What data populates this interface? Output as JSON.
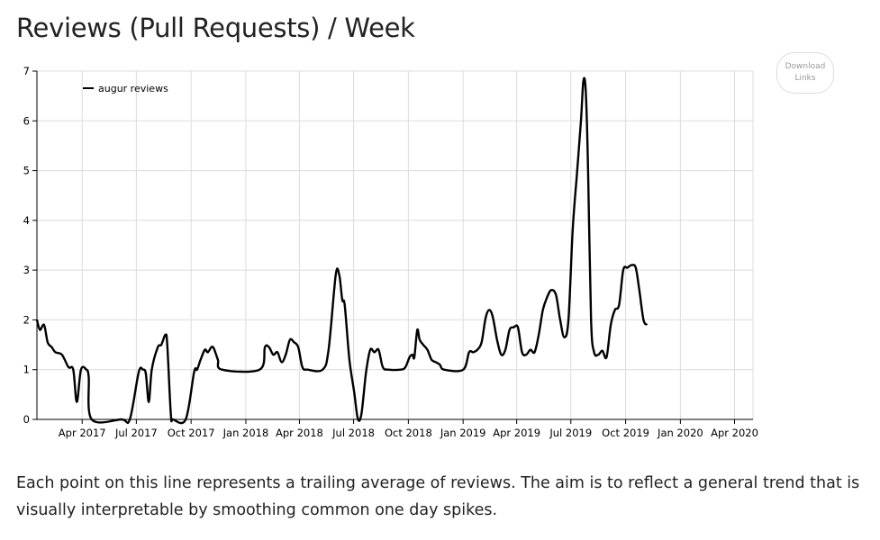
{
  "title": "Reviews (Pull Requests) / Week",
  "download_button": {
    "line1": "Download",
    "line2": "Links"
  },
  "caption": "Each point on this line represents a trailing average of reviews. The aim is to reflect a general trend that is visually interpretable by smoothing common one day spikes.",
  "chart_data": {
    "type": "line",
    "title": "Reviews (Pull Requests) / Week",
    "xlabel": "",
    "ylabel": "",
    "ylim": [
      0,
      7
    ],
    "yticks": [
      0,
      1,
      2,
      3,
      4,
      5,
      6,
      7
    ],
    "xlim": [
      "2017-01-15",
      "2020-05-02"
    ],
    "xticks": [
      {
        "date": "2017-04-01",
        "label": "Apr 2017"
      },
      {
        "date": "2017-07-01",
        "label": "Jul 2017"
      },
      {
        "date": "2017-10-01",
        "label": "Oct 2017"
      },
      {
        "date": "2018-01-01",
        "label": "Jan 2018"
      },
      {
        "date": "2018-04-01",
        "label": "Apr 2018"
      },
      {
        "date": "2018-07-01",
        "label": "Jul 2018"
      },
      {
        "date": "2018-10-01",
        "label": "Oct 2018"
      },
      {
        "date": "2019-01-01",
        "label": "Jan 2019"
      },
      {
        "date": "2019-04-01",
        "label": "Apr 2019"
      },
      {
        "date": "2019-07-01",
        "label": "Jul 2019"
      },
      {
        "date": "2019-10-01",
        "label": "Oct 2019"
      },
      {
        "date": "2020-01-01",
        "label": "Jan 2020"
      },
      {
        "date": "2020-04-01",
        "label": "Apr 2020"
      }
    ],
    "grid": true,
    "legend_position": "top-left",
    "series": [
      {
        "name": "augur reviews",
        "color": "#000000",
        "points": [
          [
            "2017-01-15",
            2.0
          ],
          [
            "2017-01-20",
            1.8
          ],
          [
            "2017-01-27",
            1.9
          ],
          [
            "2017-02-02",
            1.55
          ],
          [
            "2017-02-09",
            1.45
          ],
          [
            "2017-02-15",
            1.35
          ],
          [
            "2017-02-26",
            1.3
          ],
          [
            "2017-03-09",
            1.05
          ],
          [
            "2017-03-17",
            1.0
          ],
          [
            "2017-03-23",
            0.35
          ],
          [
            "2017-03-30",
            1.0
          ],
          [
            "2017-04-08",
            1.0
          ],
          [
            "2017-04-12",
            0.85
          ],
          [
            "2017-04-17",
            0.0
          ],
          [
            "2017-06-06",
            0.0
          ],
          [
            "2017-06-20",
            0.0
          ],
          [
            "2017-07-05",
            0.95
          ],
          [
            "2017-07-12",
            1.0
          ],
          [
            "2017-07-17",
            0.92
          ],
          [
            "2017-07-22",
            0.35
          ],
          [
            "2017-07-27",
            1.0
          ],
          [
            "2017-08-06",
            1.45
          ],
          [
            "2017-08-12",
            1.5
          ],
          [
            "2017-08-19",
            1.7
          ],
          [
            "2017-08-22",
            1.5
          ],
          [
            "2017-08-28",
            0.1
          ],
          [
            "2017-09-01",
            0.0
          ],
          [
            "2017-09-22",
            0.0
          ],
          [
            "2017-10-06",
            0.95
          ],
          [
            "2017-10-11",
            1.0
          ],
          [
            "2017-10-17",
            1.2
          ],
          [
            "2017-10-24",
            1.4
          ],
          [
            "2017-10-29",
            1.35
          ],
          [
            "2017-11-04",
            1.45
          ],
          [
            "2017-11-08",
            1.43
          ],
          [
            "2017-11-15",
            1.2
          ],
          [
            "2017-11-22",
            1.0
          ],
          [
            "2018-01-24",
            1.0
          ],
          [
            "2018-02-02",
            1.45
          ],
          [
            "2018-02-09",
            1.45
          ],
          [
            "2018-02-16",
            1.3
          ],
          [
            "2018-02-23",
            1.35
          ],
          [
            "2018-03-02",
            1.15
          ],
          [
            "2018-03-09",
            1.3
          ],
          [
            "2018-03-16",
            1.6
          ],
          [
            "2018-03-23",
            1.55
          ],
          [
            "2018-03-30",
            1.45
          ],
          [
            "2018-04-06",
            1.05
          ],
          [
            "2018-04-15",
            1.0
          ],
          [
            "2018-05-10",
            1.0
          ],
          [
            "2018-05-20",
            1.4
          ],
          [
            "2018-06-01",
            2.9
          ],
          [
            "2018-06-07",
            2.9
          ],
          [
            "2018-06-12",
            2.4
          ],
          [
            "2018-06-16",
            2.3
          ],
          [
            "2018-06-24",
            1.2
          ],
          [
            "2018-07-02",
            0.55
          ],
          [
            "2018-07-08",
            0.02
          ],
          [
            "2018-07-14",
            0.1
          ],
          [
            "2018-07-22",
            0.95
          ],
          [
            "2018-07-29",
            1.4
          ],
          [
            "2018-08-05",
            1.35
          ],
          [
            "2018-08-12",
            1.4
          ],
          [
            "2018-08-19",
            1.05
          ],
          [
            "2018-08-28",
            1.0
          ],
          [
            "2018-09-18",
            1.0
          ],
          [
            "2018-09-26",
            1.05
          ],
          [
            "2018-10-03",
            1.25
          ],
          [
            "2018-10-08",
            1.3
          ],
          [
            "2018-10-11",
            1.25
          ],
          [
            "2018-10-16",
            1.8
          ],
          [
            "2018-10-20",
            1.6
          ],
          [
            "2018-10-26",
            1.5
          ],
          [
            "2018-11-02",
            1.4
          ],
          [
            "2018-11-09",
            1.2
          ],
          [
            "2018-11-16",
            1.15
          ],
          [
            "2018-11-23",
            1.1
          ],
          [
            "2018-11-30",
            1.0
          ],
          [
            "2019-01-01",
            1.0
          ],
          [
            "2019-01-11",
            1.35
          ],
          [
            "2019-01-18",
            1.35
          ],
          [
            "2019-01-25",
            1.4
          ],
          [
            "2019-02-01",
            1.55
          ],
          [
            "2019-02-08",
            2.05
          ],
          [
            "2019-02-14",
            2.2
          ],
          [
            "2019-02-20",
            2.05
          ],
          [
            "2019-02-27",
            1.6
          ],
          [
            "2019-03-06",
            1.3
          ],
          [
            "2019-03-13",
            1.4
          ],
          [
            "2019-03-20",
            1.8
          ],
          [
            "2019-03-27",
            1.85
          ],
          [
            "2019-04-03",
            1.85
          ],
          [
            "2019-04-10",
            1.35
          ],
          [
            "2019-04-17",
            1.3
          ],
          [
            "2019-04-24",
            1.4
          ],
          [
            "2019-05-01",
            1.35
          ],
          [
            "2019-05-08",
            1.7
          ],
          [
            "2019-05-15",
            2.2
          ],
          [
            "2019-05-22",
            2.45
          ],
          [
            "2019-05-29",
            2.6
          ],
          [
            "2019-06-06",
            2.5
          ],
          [
            "2019-06-13",
            2.0
          ],
          [
            "2019-06-20",
            1.65
          ],
          [
            "2019-06-27",
            2.0
          ],
          [
            "2019-07-04",
            3.8
          ],
          [
            "2019-07-11",
            4.9
          ],
          [
            "2019-07-18",
            6.0
          ],
          [
            "2019-07-22",
            6.8
          ],
          [
            "2019-07-26",
            6.6
          ],
          [
            "2019-07-30",
            5.0
          ],
          [
            "2019-08-04",
            2.0
          ],
          [
            "2019-08-09",
            1.35
          ],
          [
            "2019-08-16",
            1.3
          ],
          [
            "2019-08-23",
            1.38
          ],
          [
            "2019-08-30",
            1.25
          ],
          [
            "2019-09-06",
            1.9
          ],
          [
            "2019-09-13",
            2.2
          ],
          [
            "2019-09-20",
            2.3
          ],
          [
            "2019-09-27",
            3.0
          ],
          [
            "2019-10-04",
            3.05
          ],
          [
            "2019-10-11",
            3.1
          ],
          [
            "2019-10-18",
            3.05
          ],
          [
            "2019-10-24",
            2.6
          ],
          [
            "2019-10-31",
            2.0
          ],
          [
            "2019-11-06",
            1.9
          ]
        ]
      }
    ]
  }
}
